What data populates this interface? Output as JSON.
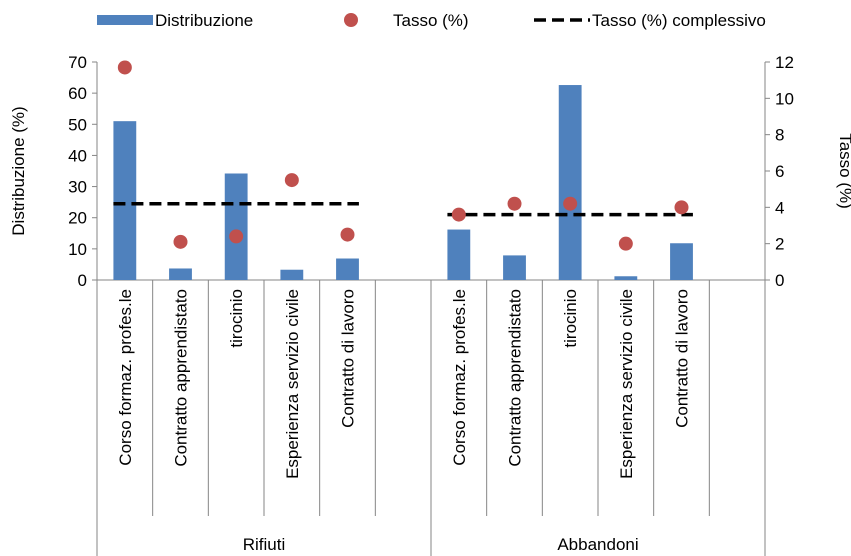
{
  "chart_data": {
    "type": "bar",
    "groups": [
      "Rifiuti",
      "Abbandoni"
    ],
    "categories": [
      "Corso formaz. profes.le",
      "Contratto apprendistato",
      "tirocinio",
      "Esperienza servizio civile",
      "Contratto di lavoro"
    ],
    "series": [
      {
        "name": "Distribuzione",
        "type": "bar",
        "axis": "left",
        "color": "#4F81BD",
        "values": {
          "Rifiuti": [
            51,
            3.7,
            34.2,
            3.3,
            6.9
          ],
          "Abbandoni": [
            16.2,
            7.9,
            62.6,
            1.2,
            11.8
          ]
        }
      },
      {
        "name": "Tasso (%)",
        "type": "scatter",
        "axis": "right",
        "color": "#C0504D",
        "values": {
          "Rifiuti": [
            11.7,
            2.1,
            2.4,
            5.5,
            2.5
          ],
          "Abbandoni": [
            3.6,
            4.2,
            4.2,
            2.0,
            4.0
          ]
        }
      },
      {
        "name": "Tasso (%) complessivo",
        "type": "line",
        "style": "dashed",
        "axis": "right",
        "color": "#000000",
        "values": {
          "Rifiuti": 4.2,
          "Abbandoni": 3.6
        }
      }
    ],
    "ylabel": "Distribuzione (%)",
    "ylim": [
      0,
      70
    ],
    "yticks": [
      0,
      10,
      20,
      30,
      40,
      50,
      60,
      70
    ],
    "y2label": "Tasso (%)",
    "y2lim": [
      0,
      12
    ],
    "y2ticks": [
      0,
      2,
      4,
      6,
      8,
      10,
      12
    ],
    "legend": "top",
    "grid": false
  }
}
